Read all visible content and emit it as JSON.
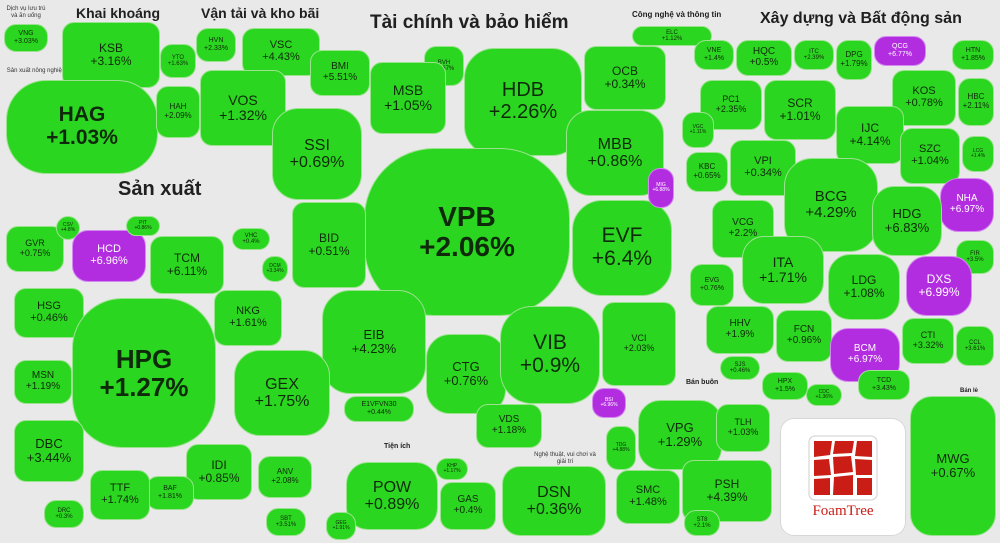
{
  "colors": {
    "up": "#2ad61f",
    "ceiling": "#b32de0",
    "background": "#e9e9e9",
    "brand": "#c91d16"
  },
  "groups": [
    {
      "id": "khai-khoang",
      "label": "Khai khoáng"
    },
    {
      "id": "van-tai",
      "label": "Vận tải và kho bãi"
    },
    {
      "id": "tai-chinh",
      "label": "Tài chính và bảo hiểm"
    },
    {
      "id": "cong-nghe",
      "label": "Công nghệ và thông tin"
    },
    {
      "id": "xay-dung",
      "label": "Xây dựng và Bất động sản"
    },
    {
      "id": "san-xuat",
      "label": "Sản xuất"
    },
    {
      "id": "tien-ich",
      "label": "Tiện ích"
    },
    {
      "id": "ban-buon",
      "label": "Bán buôn"
    },
    {
      "id": "ban-le",
      "label": "Bán lẻ"
    },
    {
      "id": "dich-vu",
      "label": "Dịch vụ lưu trú và ăn uống"
    },
    {
      "id": "nong-nghiep",
      "label": "Sản xuất nông nghiệp"
    },
    {
      "id": "nghe-thuat",
      "label": "Nghệ thuật, vui chơi và giải trí"
    }
  ],
  "tiles": [
    {
      "ticker": "VNG",
      "change": "+3.03%"
    },
    {
      "ticker": "KSB",
      "change": "+3.16%"
    },
    {
      "ticker": "HAG",
      "change": "+1.03%"
    },
    {
      "ticker": "HVN",
      "change": "+2.33%"
    },
    {
      "ticker": "VSC",
      "change": "+4.43%"
    },
    {
      "ticker": "YTO",
      "change": "+1.63%"
    },
    {
      "ticker": "VOS",
      "change": "+1.32%"
    },
    {
      "ticker": "HAH",
      "change": "+2.09%"
    },
    {
      "ticker": "BMI",
      "change": "+5.51%"
    },
    {
      "ticker": "BVH",
      "change": "+3.67%"
    },
    {
      "ticker": "MSB",
      "change": "+1.05%"
    },
    {
      "ticker": "HDB",
      "change": "+2.26%"
    },
    {
      "ticker": "OCB",
      "change": "+0.34%"
    },
    {
      "ticker": "SSI",
      "change": "+0.69%"
    },
    {
      "ticker": "MBB",
      "change": "+0.86%"
    },
    {
      "ticker": "VPB",
      "change": "+2.06%"
    },
    {
      "ticker": "EVF",
      "change": "+6.4%"
    },
    {
      "ticker": "MIG",
      "change": "+6.88%"
    },
    {
      "ticker": "BID",
      "change": "+0.51%"
    },
    {
      "ticker": "EIB",
      "change": "+4.23%"
    },
    {
      "ticker": "CTG",
      "change": "+0.76%"
    },
    {
      "ticker": "VIB",
      "change": "+0.9%"
    },
    {
      "ticker": "VCI",
      "change": "+2.03%"
    },
    {
      "ticker": "E1VFVN30",
      "change": "+0.44%"
    },
    {
      "ticker": "VDS",
      "change": "+1.18%"
    },
    {
      "ticker": "BSI",
      "change": "+6.96%"
    },
    {
      "ticker": "ELC",
      "change": "+1.12%"
    },
    {
      "ticker": "VNE",
      "change": "+1.4%"
    },
    {
      "ticker": "HQC",
      "change": "+0.5%"
    },
    {
      "ticker": "ITC",
      "change": "+2.39%"
    },
    {
      "ticker": "DPG",
      "change": "+1.79%"
    },
    {
      "ticker": "QCG",
      "change": "+6.77%"
    },
    {
      "ticker": "HTN",
      "change": "+1.85%"
    },
    {
      "ticker": "PC1",
      "change": "+2.35%"
    },
    {
      "ticker": "SCR",
      "change": "+1.01%"
    },
    {
      "ticker": "KOS",
      "change": "+0.78%"
    },
    {
      "ticker": "HBC",
      "change": "+2.11%"
    },
    {
      "ticker": "VGC",
      "change": "+1.11%"
    },
    {
      "ticker": "IJC",
      "change": "+4.14%"
    },
    {
      "ticker": "SZC",
      "change": "+1.04%"
    },
    {
      "ticker": "LCG",
      "change": "+1.4%"
    },
    {
      "ticker": "KBC",
      "change": "+0.65%"
    },
    {
      "ticker": "VPI",
      "change": "+0.34%"
    },
    {
      "ticker": "BCG",
      "change": "+4.29%"
    },
    {
      "ticker": "NHA",
      "change": "+6.97%"
    },
    {
      "ticker": "HDG",
      "change": "+6.83%"
    },
    {
      "ticker": "VCG",
      "change": "+2.2%"
    },
    {
      "ticker": "FIR",
      "change": "+3.5%"
    },
    {
      "ticker": "ITA",
      "change": "+1.71%"
    },
    {
      "ticker": "DXS",
      "change": "+6.99%"
    },
    {
      "ticker": "EVG",
      "change": "+0.76%"
    },
    {
      "ticker": "LDG",
      "change": "+1.08%"
    },
    {
      "ticker": "HHV",
      "change": "+1.9%"
    },
    {
      "ticker": "FCN",
      "change": "+0.96%"
    },
    {
      "ticker": "CTI",
      "change": "+3.32%"
    },
    {
      "ticker": "BCM",
      "change": "+6.97%"
    },
    {
      "ticker": "CCL",
      "change": "+3.61%"
    },
    {
      "ticker": "SJS",
      "change": "+0.46%"
    },
    {
      "ticker": "HPX",
      "change": "+1.5%"
    },
    {
      "ticker": "CDC",
      "change": "+1.36%"
    },
    {
      "ticker": "TCD",
      "change": "+3.43%"
    },
    {
      "ticker": "GVR",
      "change": "+0.75%"
    },
    {
      "ticker": "CSV",
      "change": "+4.8%"
    },
    {
      "ticker": "HCD",
      "change": "+6.96%"
    },
    {
      "ticker": "PIT",
      "change": "+0.86%"
    },
    {
      "ticker": "TCM",
      "change": "+6.11%"
    },
    {
      "ticker": "VHC",
      "change": "+0.4%"
    },
    {
      "ticker": "HSG",
      "change": "+0.46%"
    },
    {
      "ticker": "NKG",
      "change": "+1.61%"
    },
    {
      "ticker": "DCM",
      "change": "+3.34%"
    },
    {
      "ticker": "MSN",
      "change": "+1.19%"
    },
    {
      "ticker": "HPG",
      "change": "+1.27%"
    },
    {
      "ticker": "GEX",
      "change": "+1.75%"
    },
    {
      "ticker": "DBC",
      "change": "+3.44%"
    },
    {
      "ticker": "IDI",
      "change": "+0.85%"
    },
    {
      "ticker": "ANV",
      "change": "+2.08%"
    },
    {
      "ticker": "BAF",
      "change": "+1.81%"
    },
    {
      "ticker": "TTF",
      "change": "+1.74%"
    },
    {
      "ticker": "DRC",
      "change": "+0.3%"
    },
    {
      "ticker": "SBT",
      "change": "+3.51%"
    },
    {
      "ticker": "POW",
      "change": "+0.89%"
    },
    {
      "ticker": "KHP",
      "change": "+1.17%"
    },
    {
      "ticker": "GAS",
      "change": "+0.4%"
    },
    {
      "ticker": "GEG",
      "change": "+1.91%"
    },
    {
      "ticker": "DSN",
      "change": "+0.36%"
    },
    {
      "ticker": "TDG",
      "change": "+4.88%"
    },
    {
      "ticker": "VPG",
      "change": "+1.29%"
    },
    {
      "ticker": "TLH",
      "change": "+1.03%"
    },
    {
      "ticker": "SMC",
      "change": "+1.48%"
    },
    {
      "ticker": "PSH",
      "change": "+4.39%"
    },
    {
      "ticker": "ST8",
      "change": "+2.1%"
    },
    {
      "ticker": "MWG",
      "change": "+0.67%"
    }
  ],
  "logo": {
    "brand": "FoamTree"
  }
}
